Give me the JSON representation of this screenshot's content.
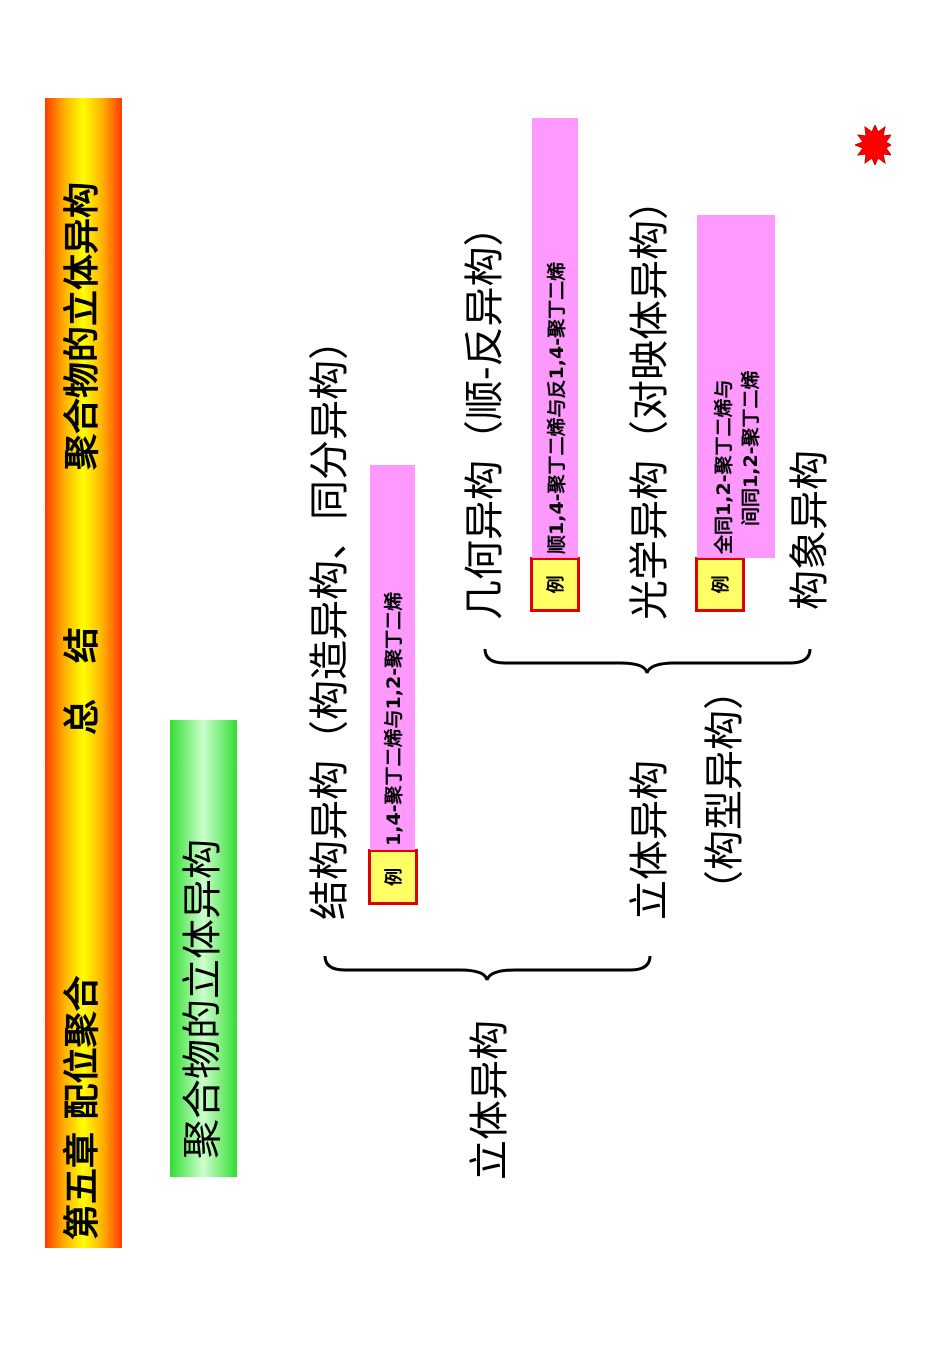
{
  "header": {
    "chapter": "第五章 配位聚合",
    "summary": "总　结",
    "topic": "聚合物的立体异构"
  },
  "subtitle": "聚合物的立体异构",
  "tree": {
    "root": "立体异构",
    "constitutional": {
      "label": "结构异构（构造异构、同分异构）",
      "example_tag": "例",
      "example": [
        "1,4-聚丁二烯与1,2-聚丁二烯"
      ]
    },
    "stereo": {
      "label": "立体异构",
      "sublabel": "（构型异构）",
      "children": [
        {
          "label": "几何异构（顺-反异构）",
          "example_tag": "例",
          "example": [
            "顺1,4-聚丁二烯与反1,4-聚丁二烯"
          ]
        },
        {
          "label": "光学异构（对映体异构）",
          "example_tag": "例",
          "example": [
            "全同1,2-聚丁二烯与",
            "间同1,2-聚丁二烯"
          ]
        }
      ]
    },
    "conformational": {
      "label": "构象异构"
    }
  }
}
